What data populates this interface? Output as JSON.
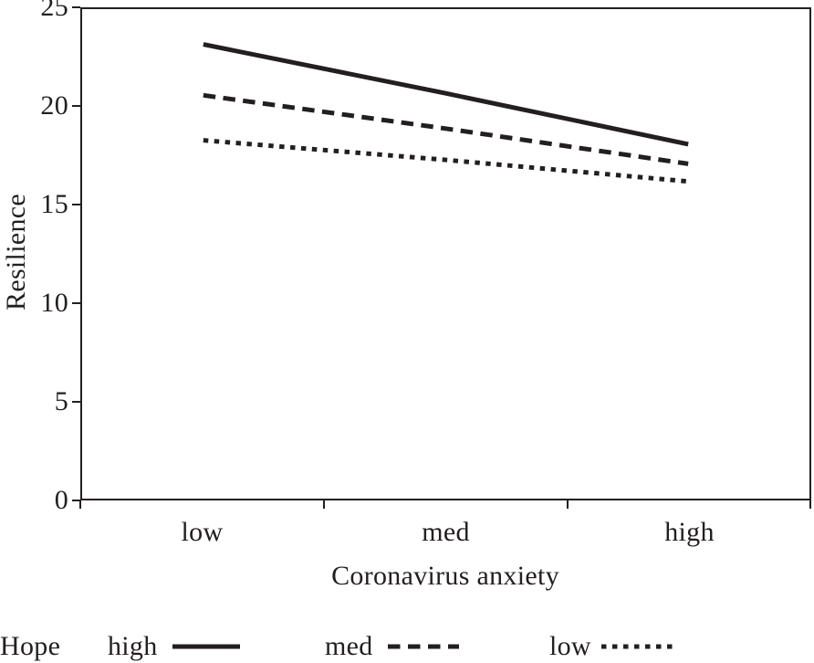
{
  "colors": {
    "ink": "#231f20",
    "background": "#ffffff"
  },
  "chart_data": {
    "type": "line",
    "title": "",
    "xlabel": "Coronavirus anxiety",
    "ylabel": "Resilience",
    "categories": [
      "low",
      "med",
      "high"
    ],
    "y_ticks": [
      0,
      5,
      10,
      15,
      20,
      25
    ],
    "ylim": [
      0,
      25
    ],
    "grid": false,
    "legend_position": "bottom",
    "legend_title": "Hope",
    "series": [
      {
        "name": "high",
        "style": "solid",
        "values": [
          23.2,
          20.7,
          18.1
        ]
      },
      {
        "name": "med",
        "style": "dashed",
        "values": [
          20.6,
          18.9,
          17.1
        ]
      },
      {
        "name": "low",
        "style": "dotted",
        "values": [
          18.3,
          17.3,
          16.2
        ]
      }
    ]
  }
}
